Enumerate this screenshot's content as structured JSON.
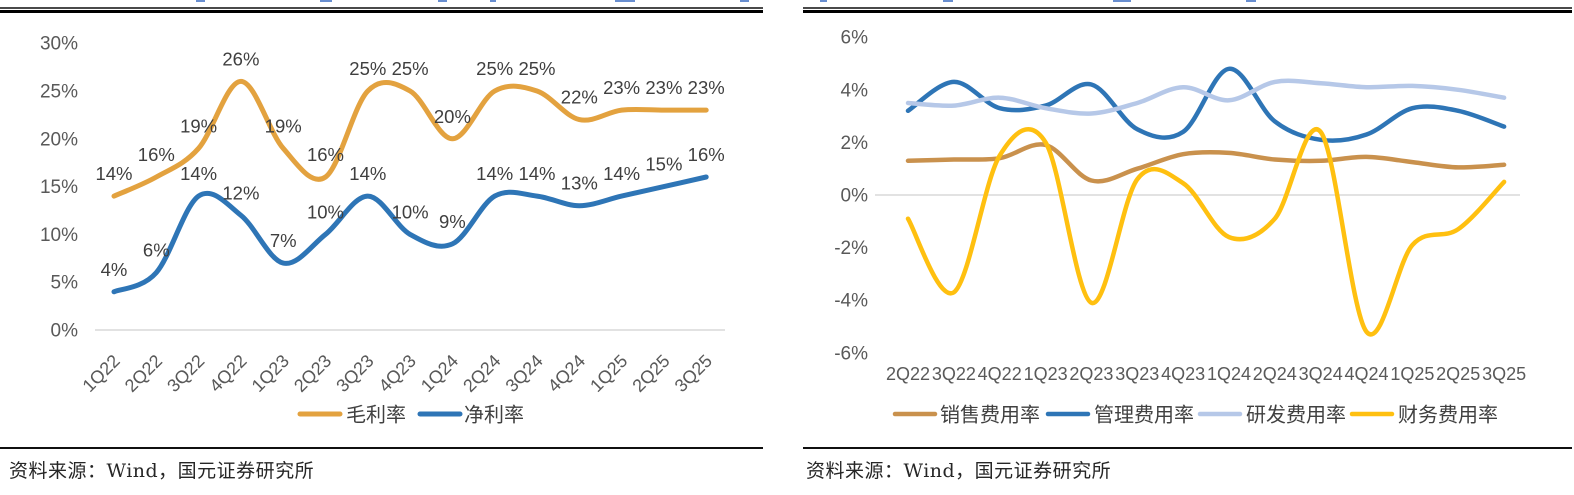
{
  "source_note": {
    "left": "资料来源：Wind，国元证券研究所",
    "right": "资料来源：Wind，国元证券研究所"
  },
  "colors": {
    "gross_margin": "#E3A23F",
    "net_margin": "#2E75B6",
    "sales_expense": "#C9914D",
    "admin_expense": "#2E75B6",
    "rd_expense": "#B6C8E8",
    "finance_expense": "#FFC010",
    "axis_label": "#595959",
    "data_label": "#3F3F3F",
    "gridline": "#D9D9D9"
  },
  "chart_data": [
    {
      "type": "line",
      "title": "",
      "categories": [
        "1Q22",
        "2Q22",
        "3Q22",
        "4Q22",
        "1Q23",
        "2Q23",
        "3Q23",
        "4Q23",
        "1Q24",
        "2Q24",
        "3Q24",
        "4Q24",
        "1Q25",
        "2Q25",
        "3Q25"
      ],
      "series": [
        {
          "name": "毛利率",
          "color": "#E3A23F",
          "values": [
            14,
            16,
            19,
            26,
            19,
            16,
            25,
            25,
            20,
            25,
            25,
            22,
            23,
            23,
            23
          ]
        },
        {
          "name": "净利率",
          "color": "#2E75B6",
          "values": [
            4,
            6,
            14,
            12,
            7,
            10,
            14,
            10,
            9,
            14,
            14,
            13,
            14,
            15,
            16
          ]
        }
      ],
      "ylim": [
        0,
        30
      ],
      "yticks": [
        "30%",
        "25%",
        "20%",
        "15%",
        "10%",
        "5%",
        "0%"
      ],
      "grid": "zero-line-only",
      "legend_position": "bottom",
      "show_data_labels": true,
      "data_label_format": "{v}%"
    },
    {
      "type": "line",
      "title": "",
      "categories": [
        "2Q22",
        "3Q22",
        "4Q22",
        "1Q23",
        "2Q23",
        "3Q23",
        "4Q23",
        "1Q24",
        "2Q24",
        "3Q24",
        "4Q24",
        "1Q25",
        "2Q25",
        "3Q25"
      ],
      "series": [
        {
          "name": "销售费用率",
          "color": "#C9914D",
          "values": [
            1.3,
            1.35,
            1.4,
            1.9,
            0.55,
            1.0,
            1.55,
            1.6,
            1.35,
            1.3,
            1.45,
            1.25,
            1.05,
            1.15
          ]
        },
        {
          "name": "管理费用率",
          "color": "#2E75B6",
          "values": [
            3.2,
            4.3,
            3.3,
            3.4,
            4.2,
            2.5,
            2.4,
            4.8,
            2.8,
            2.1,
            2.3,
            3.3,
            3.2,
            2.6
          ]
        },
        {
          "name": "研发费用率",
          "color": "#B6C8E8",
          "values": [
            3.5,
            3.4,
            3.7,
            3.3,
            3.1,
            3.5,
            4.1,
            3.6,
            4.3,
            4.25,
            4.1,
            4.15,
            4.0,
            3.7
          ]
        },
        {
          "name": "财务费用率",
          "color": "#FFC010",
          "values": [
            -0.9,
            -3.7,
            1.5,
            2.0,
            -4.1,
            0.6,
            0.45,
            -1.6,
            -0.9,
            2.4,
            -5.2,
            -1.9,
            -1.3,
            0.5
          ]
        }
      ],
      "ylim": [
        -6,
        6
      ],
      "yticks": [
        "6%",
        "4%",
        "2%",
        "0%",
        "-2%",
        "-4%",
        "-6%"
      ],
      "grid": "zero-line-only",
      "legend_position": "bottom",
      "show_data_labels": false
    }
  ]
}
